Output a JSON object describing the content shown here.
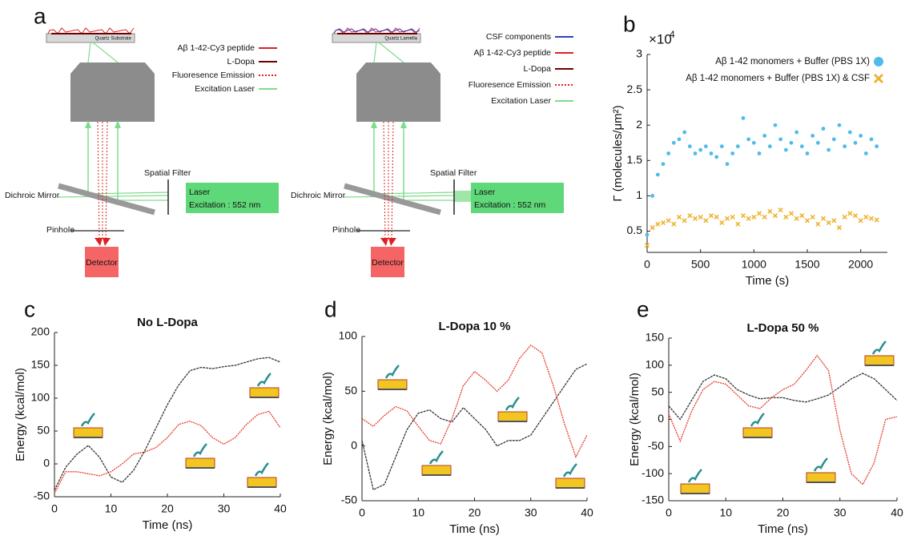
{
  "panel_labels": [
    "a",
    "b",
    "c",
    "d",
    "e"
  ],
  "diagram": [
    {
      "substrate": "Quartz Substrate",
      "legend": [
        {
          "label": "Aβ 1-42-Cy3 peptide",
          "color": "#e02020",
          "dashed": false
        },
        {
          "label": "L-Dopa",
          "color": "#6b0000",
          "dashed": false
        },
        {
          "label": "Fluoresence Emission",
          "color": "#e02020",
          "dashed": true
        },
        {
          "label": "Excitation Laser",
          "color": "#7fdc8c",
          "dashed": false
        }
      ],
      "spatial_filter": "Spatial Filter",
      "mirror": "Dichroic Mirror",
      "laser": "Laser",
      "excitation": "Excitation : 552 nm",
      "pinhole": "Pinhole",
      "detector": "Detector"
    },
    {
      "substrate": "Quartz Lamella",
      "legend": [
        {
          "label": "CSF components",
          "color": "#3040c0",
          "dashed": false
        },
        {
          "label": "Aβ 1-42-Cy3 peptide",
          "color": "#e02020",
          "dashed": false
        },
        {
          "label": "L-Dopa",
          "color": "#6b0000",
          "dashed": false
        },
        {
          "label": "Fluoresence Emission",
          "color": "#e02020",
          "dashed": true
        },
        {
          "label": "Excitation Laser",
          "color": "#7fdc8c",
          "dashed": false
        }
      ],
      "spatial_filter": "Spatial Filter",
      "mirror": "Dichroic Mirror",
      "laser": "Laser",
      "excitation": "Excitation : 552 nm",
      "pinhole": "Pinhole",
      "detector": "Detector"
    }
  ],
  "chart_data": [
    {
      "type": "scatter",
      "xlabel": "Time (s)",
      "ylabel": "Γ (molecules/μm²)",
      "y_multiplier": "×10",
      "y_multiplier_exp": "4",
      "xlim": [
        0,
        2250
      ],
      "xticks": [
        0,
        500,
        1000,
        1500,
        2000
      ],
      "ylim": [
        0.2,
        3
      ],
      "yticks": [
        0.5,
        1,
        1.5,
        2,
        2.5,
        3
      ],
      "x": [
        0,
        50,
        100,
        150,
        200,
        250,
        300,
        350,
        400,
        450,
        500,
        550,
        600,
        650,
        700,
        750,
        800,
        850,
        900,
        950,
        1000,
        1050,
        1100,
        1150,
        1200,
        1250,
        1300,
        1350,
        1400,
        1450,
        1500,
        1550,
        1600,
        1650,
        1700,
        1750,
        1800,
        1850,
        1900,
        1950,
        2000,
        2050,
        2100,
        2150
      ],
      "series": [
        {
          "name": "Aβ 1-42 monomers + Buffer (PBS 1X)",
          "color": "#4fbbea",
          "marker": "o",
          "values": [
            0.45,
            1.0,
            1.3,
            1.45,
            1.6,
            1.75,
            1.8,
            1.9,
            1.7,
            1.6,
            1.65,
            1.7,
            1.6,
            1.55,
            1.7,
            1.45,
            1.6,
            1.7,
            2.1,
            1.8,
            1.75,
            1.6,
            1.85,
            1.7,
            2.0,
            1.8,
            1.65,
            1.75,
            1.9,
            1.7,
            1.6,
            1.85,
            1.75,
            1.95,
            1.65,
            1.8,
            2.0,
            1.7,
            1.9,
            1.75,
            1.85,
            1.6,
            1.8,
            1.7
          ]
        },
        {
          "name": "Aβ 1-42 monomers + Buffer (PBS 1X) & CSF",
          "color": "#eeb22e",
          "marker": "x",
          "values": [
            0.3,
            0.55,
            0.6,
            0.62,
            0.65,
            0.6,
            0.7,
            0.65,
            0.72,
            0.68,
            0.7,
            0.65,
            0.72,
            0.7,
            0.62,
            0.68,
            0.7,
            0.6,
            0.72,
            0.68,
            0.7,
            0.75,
            0.7,
            0.78,
            0.72,
            0.8,
            0.7,
            0.75,
            0.68,
            0.72,
            0.65,
            0.7,
            0.6,
            0.68,
            0.62,
            0.65,
            0.55,
            0.7,
            0.75,
            0.72,
            0.65,
            0.7,
            0.68,
            0.66
          ]
        }
      ]
    },
    {
      "type": "line",
      "title": "No L-Dopa",
      "xlabel": "Time (ns)",
      "ylabel": "Energy (kcal/mol)",
      "xlim": [
        0,
        40
      ],
      "xticks": [
        0,
        10,
        20,
        30,
        40
      ],
      "ylim": [
        -50,
        200
      ],
      "yticks": [
        -50,
        0,
        50,
        100,
        150,
        200
      ],
      "x": [
        0,
        2,
        4,
        6,
        8,
        10,
        12,
        14,
        16,
        18,
        20,
        22,
        24,
        26,
        28,
        30,
        32,
        34,
        36,
        38,
        40
      ],
      "series": [
        {
          "color": "#333333",
          "values": [
            -40,
            -5,
            15,
            28,
            10,
            -20,
            -28,
            -10,
            20,
            55,
            90,
            120,
            142,
            147,
            145,
            148,
            150,
            155,
            160,
            162,
            155
          ]
        },
        {
          "color": "#e83a2a",
          "values": [
            -45,
            -12,
            -12,
            -15,
            -18,
            -12,
            0,
            15,
            18,
            25,
            40,
            60,
            65,
            58,
            40,
            30,
            40,
            60,
            75,
            80,
            55
          ]
        }
      ]
    },
    {
      "type": "line",
      "title": "L-Dopa 10 %",
      "xlabel": "Time (ns)",
      "ylabel": "Energy (kcal/mol)",
      "xlim": [
        0,
        40
      ],
      "xticks": [
        0,
        10,
        20,
        30,
        40
      ],
      "ylim": [
        -50,
        100
      ],
      "yticks": [
        -50,
        0,
        50,
        100
      ],
      "x": [
        0,
        2,
        4,
        6,
        8,
        10,
        12,
        14,
        16,
        18,
        20,
        22,
        24,
        26,
        28,
        30,
        32,
        34,
        36,
        38,
        40
      ],
      "series": [
        {
          "color": "#333333",
          "values": [
            5,
            -40,
            -35,
            -10,
            15,
            30,
            33,
            25,
            22,
            35,
            25,
            15,
            0,
            5,
            5,
            10,
            25,
            40,
            55,
            70,
            75
          ]
        },
        {
          "color": "#e83a2a",
          "values": [
            25,
            18,
            28,
            36,
            32,
            18,
            5,
            2,
            25,
            55,
            68,
            60,
            50,
            60,
            80,
            92,
            85,
            55,
            20,
            -10,
            10
          ]
        }
      ]
    },
    {
      "type": "line",
      "title": "L-Dopa 50 %",
      "xlabel": "Time (ns)",
      "ylabel": "Energy (kcal/mol)",
      "xlim": [
        0,
        40
      ],
      "xticks": [
        0,
        10,
        20,
        30,
        40
      ],
      "ylim": [
        -150,
        150
      ],
      "yticks": [
        -150,
        -100,
        -50,
        0,
        50,
        100,
        150
      ],
      "x": [
        0,
        2,
        4,
        6,
        8,
        10,
        12,
        14,
        16,
        18,
        20,
        22,
        24,
        26,
        28,
        30,
        32,
        34,
        36,
        38,
        40
      ],
      "series": [
        {
          "color": "#333333",
          "values": [
            25,
            0,
            35,
            70,
            82,
            75,
            55,
            45,
            38,
            40,
            40,
            35,
            32,
            38,
            45,
            60,
            75,
            85,
            75,
            55,
            35
          ]
        },
        {
          "color": "#e83a2a",
          "values": [
            10,
            -40,
            15,
            55,
            70,
            65,
            45,
            25,
            20,
            40,
            55,
            65,
            90,
            118,
            90,
            -20,
            -100,
            -120,
            -80,
            0,
            5
          ]
        }
      ]
    }
  ]
}
